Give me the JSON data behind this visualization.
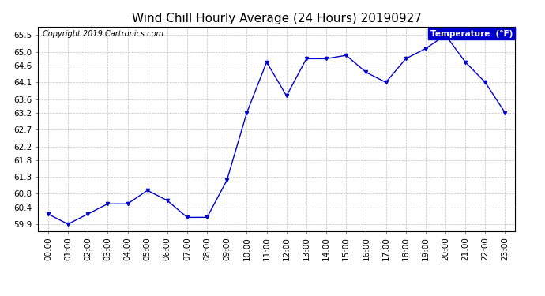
{
  "title": "Wind Chill Hourly Average (24 Hours) 20190927",
  "copyright": "Copyright 2019 Cartronics.com",
  "legend_label": "Temperature  (°F)",
  "hours": [
    "00:00",
    "01:00",
    "02:00",
    "03:00",
    "04:00",
    "05:00",
    "06:00",
    "07:00",
    "08:00",
    "09:00",
    "10:00",
    "11:00",
    "12:00",
    "13:00",
    "14:00",
    "15:00",
    "16:00",
    "17:00",
    "18:00",
    "19:00",
    "20:00",
    "21:00",
    "22:00",
    "23:00"
  ],
  "values": [
    60.2,
    59.9,
    60.2,
    60.5,
    60.5,
    60.9,
    60.6,
    60.1,
    60.1,
    61.2,
    63.2,
    64.7,
    63.7,
    64.8,
    64.8,
    64.9,
    64.4,
    64.1,
    64.8,
    65.1,
    65.5,
    64.7,
    64.1,
    63.2
  ],
  "ylim_min": 59.7,
  "ylim_max": 65.75,
  "yticks": [
    59.9,
    60.4,
    60.8,
    61.3,
    61.8,
    62.2,
    62.7,
    63.2,
    63.6,
    64.1,
    64.6,
    65.0,
    65.5
  ],
  "line_color": "#0000cc",
  "marker_color": "#0000cc",
  "bg_color": "#ffffff",
  "plot_bg_color": "#ffffff",
  "grid_color": "#c0c0c0",
  "title_fontsize": 11,
  "tick_fontsize": 7.5,
  "copyright_fontsize": 7,
  "legend_bg": "#0000cc",
  "legend_fg": "#ffffff",
  "legend_fontsize": 7.5
}
